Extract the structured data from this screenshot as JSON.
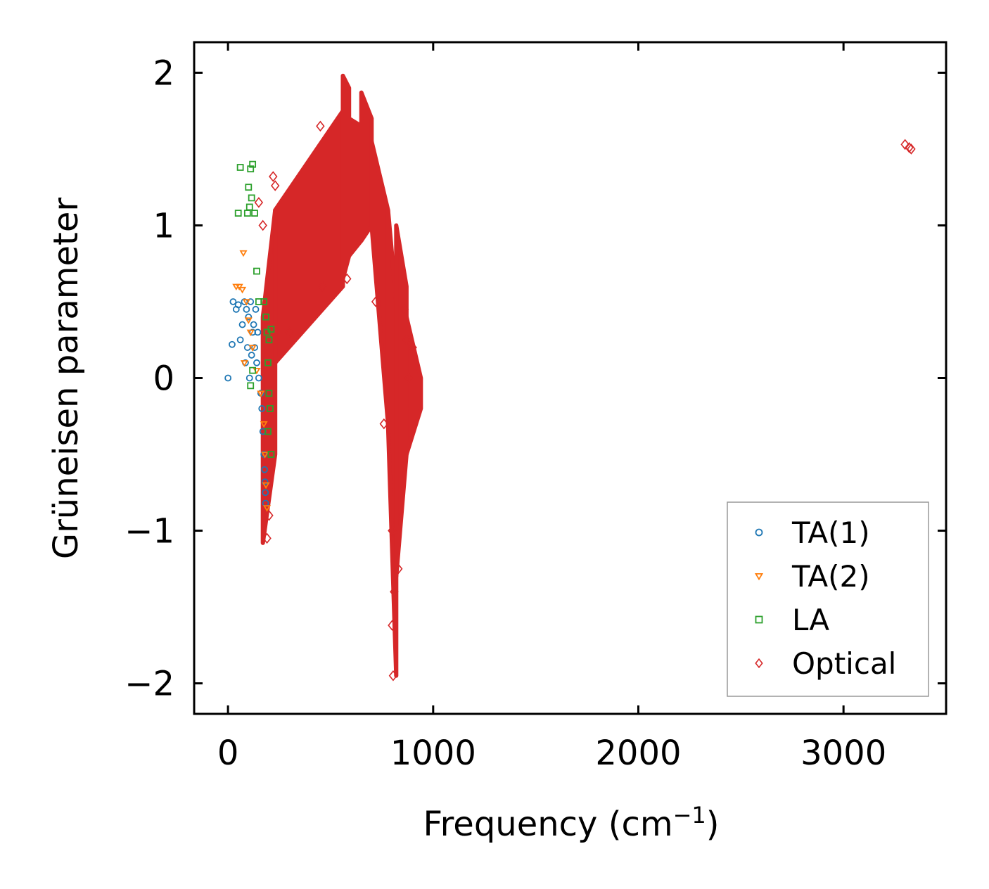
{
  "chart_data": {
    "type": "scatter",
    "title": "",
    "xlabel": "Frequency (cm",
    "xlabel_sup": "−1",
    "xlabel_close": ")",
    "ylabel": "Grüneisen parameter",
    "xlim": [
      -165,
      3500
    ],
    "ylim": [
      -2.2,
      2.2
    ],
    "xticks": [
      0,
      1000,
      2000,
      3000
    ],
    "xtick_labels": [
      "0",
      "1000",
      "2000",
      "3000"
    ],
    "yticks": [
      2,
      1,
      0,
      -1,
      -2
    ],
    "ytick_labels": [
      "2",
      "1",
      "0",
      "−1",
      "−2"
    ],
    "grid": false,
    "legend_position": "bottom-right",
    "series": [
      {
        "name": "TA(1)",
        "marker": "circle",
        "color": "#1f77b4",
        "points": [
          [
            0,
            0
          ],
          [
            20,
            0.22
          ],
          [
            25,
            0.5
          ],
          [
            40,
            0.45
          ],
          [
            50,
            0.48
          ],
          [
            60,
            0.25
          ],
          [
            70,
            0.35
          ],
          [
            80,
            0.5
          ],
          [
            90,
            0.45
          ],
          [
            100,
            0.4
          ],
          [
            110,
            0.5
          ],
          [
            120,
            0.3
          ],
          [
            130,
            0.2
          ],
          [
            140,
            0.1
          ],
          [
            150,
            0.0
          ],
          [
            160,
            -0.1
          ],
          [
            165,
            -0.2
          ],
          [
            170,
            -0.35
          ],
          [
            175,
            -0.5
          ],
          [
            178,
            -0.6
          ],
          [
            180,
            -0.68
          ],
          [
            182,
            -0.75
          ],
          [
            183,
            -0.82
          ],
          [
            85,
            0.1
          ],
          [
            95,
            0.2
          ],
          [
            105,
            0.0
          ],
          [
            115,
            0.15
          ],
          [
            125,
            0.35
          ],
          [
            135,
            0.45
          ],
          [
            145,
            0.3
          ]
        ]
      },
      {
        "name": "TA(2)",
        "marker": "triangle",
        "color": "#ff7f0e",
        "points": [
          [
            40,
            0.6
          ],
          [
            55,
            0.6
          ],
          [
            70,
            0.58
          ],
          [
            75,
            0.82
          ],
          [
            90,
            0.5
          ],
          [
            100,
            0.38
          ],
          [
            120,
            0.2
          ],
          [
            140,
            0.05
          ],
          [
            160,
            -0.1
          ],
          [
            175,
            -0.3
          ],
          [
            180,
            -0.5
          ],
          [
            185,
            -0.7
          ],
          [
            190,
            -0.85
          ],
          [
            80,
            0.1
          ],
          [
            110,
            0.3
          ]
        ]
      },
      {
        "name": "LA",
        "marker": "square",
        "color": "#2ca02c",
        "points": [
          [
            60,
            1.38
          ],
          [
            95,
            1.08
          ],
          [
            100,
            1.25
          ],
          [
            110,
            1.37
          ],
          [
            120,
            1.4
          ],
          [
            115,
            1.18
          ],
          [
            105,
            1.12
          ],
          [
            130,
            1.08
          ],
          [
            140,
            0.7
          ],
          [
            150,
            0.5
          ],
          [
            175,
            0.5
          ],
          [
            185,
            0.4
          ],
          [
            190,
            0.3
          ],
          [
            195,
            0.1
          ],
          [
            200,
            -0.1
          ],
          [
            205,
            -0.2
          ],
          [
            195,
            -0.35
          ],
          [
            210,
            -0.5
          ],
          [
            110,
            -0.05
          ],
          [
            120,
            0.05
          ],
          [
            50,
            1.08
          ],
          [
            200,
            0.25
          ],
          [
            210,
            0.32
          ]
        ]
      },
      {
        "name": "Optical",
        "marker": "diamond",
        "color": "#d62728",
        "points": [],
        "bands": [
          {
            "x0": 170,
            "x1": 230,
            "lo": [
              -1.08,
              -0.5
            ],
            "hi": [
              0.4,
              1.1
            ]
          },
          {
            "x0": 230,
            "x1": 560,
            "lo": [
              0.1,
              0.6
            ],
            "hi": [
              1.1,
              1.75
            ]
          },
          {
            "x0": 560,
            "x1": 590,
            "lo": [
              0.65,
              0.8
            ],
            "hi": [
              1.98,
              1.9
            ]
          },
          {
            "x0": 590,
            "x1": 650,
            "lo": [
              0.8,
              0.9
            ],
            "hi": [
              1.7,
              1.65
            ]
          },
          {
            "x0": 650,
            "x1": 700,
            "lo": [
              0.9,
              1.0
            ],
            "hi": [
              1.87,
              1.7
            ]
          },
          {
            "x0": 700,
            "x1": 780,
            "lo": [
              1.0,
              -0.3
            ],
            "hi": [
              1.55,
              1.1
            ]
          },
          {
            "x0": 780,
            "x1": 820,
            "lo": [
              -0.3,
              -1.95
            ],
            "hi": [
              1.1,
              0.5
            ]
          },
          {
            "x0": 820,
            "x1": 870,
            "lo": [
              -1.3,
              -0.5
            ],
            "hi": [
              1.0,
              0.6
            ]
          },
          {
            "x0": 870,
            "x1": 940,
            "lo": [
              -0.5,
              -0.2
            ],
            "hi": [
              0.4,
              0.0
            ]
          }
        ],
        "outliers": [
          [
            220,
            1.32
          ],
          [
            230,
            1.26
          ],
          [
            300,
            0.3
          ],
          [
            460,
            0.6
          ],
          [
            450,
            1.65
          ],
          [
            580,
            0.65
          ],
          [
            720,
            0.5
          ],
          [
            760,
            -0.3
          ],
          [
            800,
            -1.0
          ],
          [
            810,
            -1.4
          ],
          [
            830,
            -1.25
          ],
          [
            860,
            0.45
          ],
          [
            870,
            0.25
          ],
          [
            880,
            0.0
          ],
          [
            900,
            0.2
          ],
          [
            190,
            -1.05
          ],
          [
            200,
            -0.9
          ],
          [
            150,
            1.15
          ],
          [
            170,
            1.0
          ],
          [
            800,
            -1.62
          ],
          [
            805,
            -1.95
          ],
          [
            3300,
            1.53
          ],
          [
            3320,
            1.51
          ],
          [
            3330,
            1.5
          ]
        ]
      }
    ]
  }
}
